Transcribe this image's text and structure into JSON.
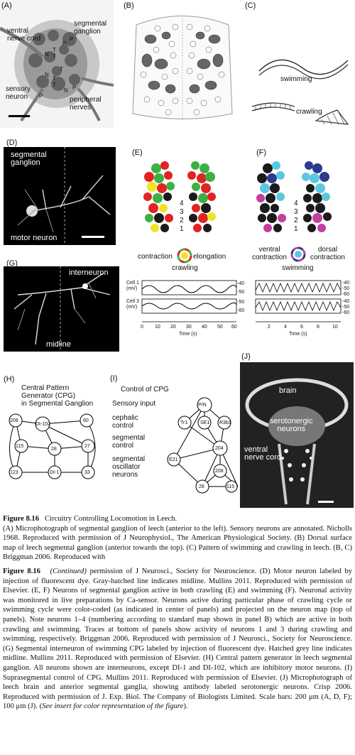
{
  "panel_a": {
    "letter": "(A)",
    "labels": {
      "ventral": "ventral\nnerve cord",
      "segmental": "segmental\nganglion",
      "sensory": "sensory\nneuron",
      "peripheral": "peripheral\nnerves"
    },
    "cell_marks": [
      "N",
      "T",
      "T",
      "P",
      "N",
      "T",
      "T",
      "P",
      "P",
      "N",
      "T",
      "P"
    ]
  },
  "panel_b": {
    "letter": "(B)"
  },
  "panel_c": {
    "letter": "(C)",
    "swimming": "swimming",
    "crawling": "crawling"
  },
  "panel_d": {
    "letter": "(D)",
    "top": "segmental\nganglion",
    "bottom": "motor neuron"
  },
  "panel_e": {
    "letter": "(E)",
    "numbers": [
      "4",
      "3",
      "2",
      "1"
    ],
    "left": "contraction",
    "right": "elongation",
    "title": "crawling"
  },
  "panel_f": {
    "letter": "(F)",
    "numbers": [
      "4",
      "3",
      "2",
      "1"
    ],
    "left": "ventral\ncontraction",
    "right": "dorsal\ncontraction",
    "title": "swimming"
  },
  "panel_g": {
    "letter": "(G)",
    "top": "interneuron",
    "bottom": "midline"
  },
  "traces": {
    "left": {
      "ylab1": "Cell 1\n(mV)",
      "ylab2": "Cell 3\n(mV)",
      "yt1": [
        "-40",
        "-50"
      ],
      "yt2": [
        "-50",
        "-60"
      ],
      "xticks": [
        "0",
        "10",
        "20",
        "30",
        "40",
        "50",
        "60"
      ],
      "xlabel": "Time (s)"
    },
    "right": {
      "yt1": [
        "-40",
        "-50",
        "-60"
      ],
      "yt2": [
        "-40",
        "-50",
        "-60"
      ],
      "xticks": [
        "2",
        "4",
        "6",
        "8",
        "10"
      ],
      "xlabel": "Time (s)"
    }
  },
  "panel_h": {
    "letter": "(H)",
    "title": "Central Pattern\nGenerator (CPG)\nin Segmental Ganglion",
    "nodes": [
      "208",
      "DI-102",
      "60",
      "115",
      "28",
      "27",
      "123",
      "DI-1",
      "33"
    ]
  },
  "panel_i": {
    "letter": "(I)",
    "title": "Control of CPG",
    "rows": [
      "Sensory input",
      "cephalic\ncontrol",
      "segmental\ncontrol",
      "segmental\noscillator\nneurons"
    ],
    "nodes": [
      "P/N",
      "Tr1",
      "SE1",
      "R3b1",
      "E21",
      "204",
      "208",
      "28",
      "115"
    ]
  },
  "panel_j": {
    "letter": "(J)",
    "brain": "brain",
    "sero": "serotonergic\nneurons",
    "ventral": "ventral\nnerve cord"
  },
  "caption": {
    "fig1": "Figure 8.16",
    "title1": "Circuitry Controlling Locomotion in Leech.",
    "text1": "(A) Microphotograph of segmental ganglion of leech (anterior to the left). Sensory neurons are annotated. Nicholls 1968. Reproduced with permission of J Neurophysiol., The American Physiological Society. (B) Dorsal surface map of leech segmental ganglion (anterior towards the top). (C) Pattern of swimming and crawling in leech. (B, C) Briggman 2006. Reproduced with",
    "fig2": "Figure 8.16",
    "cont": "(Continued)",
    "text2a": " permission of J Neurosci., Society for Neuroscience. (D) Motor neuron labeled by injection of fluorescent dye. Gray-hatched line indicates midline. Mullins 2011. Reproduced with permission of Elsevier. (E, F) Neurons of segmental ganglion active in both crawling (E) and swimming (F). Neuronal activity was monitored in live preparations by Ca-sensor. Neurons active during particular phase of crawling cycle or swimming cycle were color-coded (as indicated in center of panels) and projected on the neuron map (top of panels). Note neurons 1–4 (numbering according to standard map shown in panel B) which are active in both crawling and swimming. Traces at bottom of panels show activity of neurons 1 and 3 during crawling and swimming, respectively. Briggman 2006. Reproduced with permission of J Neurosci., Society for Neuroscience. (G) Segmental interneuron of swimming CPG labeled by injection of fluorescent dye. Hatched grey line indicates midline. Mullins 2011. Reproduced with permission of Elsevier. (H) Central pattern generator in leech segmental ganglion. All neurons shown are interneurons, except DI-1 and DI-102, which are inhibitory motor neurons. (I) Suprasegmental control of CPG. Mullins 2011. Reproduced with permission of Elsevier. (J) Microphotograph of leech brain and anterior segmental ganglia, showing antibody labeled serotonergic neurons. Crisp 2006. Reproduced with permission of J. Exp. Biol. The Company of Biologists Limited. Scale bars: 200 μm (A, D, F); 100 μm (J). (",
    "see": "See insert for color representation of the figure",
    "end": ")."
  },
  "colors": {
    "red": "#e32222",
    "green": "#3cb043",
    "yellow": "#f2e224",
    "black": "#1a1a1a",
    "cyan": "#5cc8e0",
    "navy": "#2a3a8c",
    "magenta": "#c0409e"
  }
}
